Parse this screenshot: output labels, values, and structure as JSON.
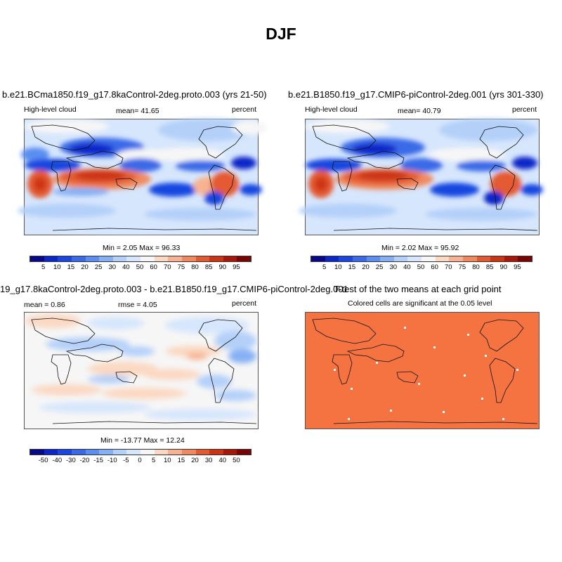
{
  "title": "DJF",
  "panels": {
    "p1": {
      "title": "b.e21.BCma1850.f19_g17.8kaControl-2deg.proto.003 (yrs 21-50)",
      "left_label": "High-level cloud",
      "mean": "mean=  41.65",
      "units": "percent",
      "minmax": "Min =   2.05 Max =  96.33"
    },
    "p2": {
      "title": "b.e21.B1850.f19_g17.CMIP6-piControl-2deg.001 (yrs 301-330)",
      "left_label": "High-level cloud",
      "mean": "mean=  40.79",
      "units": "percent",
      "minmax": "Min =   2.02 Max =  95.92"
    },
    "p3": {
      "title": "19_g17.8kaControl-2deg.proto.003 - b.e21.B1850.f19_g17.CMIP6-piControl-2deg.001",
      "mean": "mean =   0.86",
      "rmse": "rmse =   4.05",
      "units": "percent",
      "minmax": "Min = -13.77 Max =  12.24"
    },
    "p4": {
      "title": "T-test of the two means at each grid point",
      "subtitle": "Colored cells are significant at the 0.05 level",
      "fill_color": "#f47340"
    }
  },
  "colorbar_abs": {
    "labels": [
      "5",
      "10",
      "15",
      "20",
      "25",
      "30",
      "40",
      "50",
      "60",
      "70",
      "75",
      "80",
      "85",
      "90",
      "95"
    ],
    "colors": [
      "#08088a",
      "#0c27c9",
      "#1947e0",
      "#3a6ae8",
      "#5a8ef0",
      "#86b0f5",
      "#b4d0f9",
      "#d6e6fc",
      "#f6f6f6",
      "#fbd8c2",
      "#f7b391",
      "#f08a5e",
      "#e45a30",
      "#cc3414",
      "#a6170a",
      "#7a0403"
    ]
  },
  "colorbar_diff": {
    "labels": [
      "-50",
      "-40",
      "-30",
      "-20",
      "-15",
      "-10",
      "-5",
      "0",
      "5",
      "10",
      "15",
      "20",
      "30",
      "40",
      "50"
    ],
    "colors": [
      "#08088a",
      "#0c27c9",
      "#1947e0",
      "#3a6ae8",
      "#5a8ef0",
      "#86b0f5",
      "#b4d0f9",
      "#d6e6fc",
      "#f6f6f6",
      "#fbd8c2",
      "#f7b391",
      "#f08a5e",
      "#e45a30",
      "#cc3414",
      "#a6170a",
      "#7a0403"
    ]
  }
}
